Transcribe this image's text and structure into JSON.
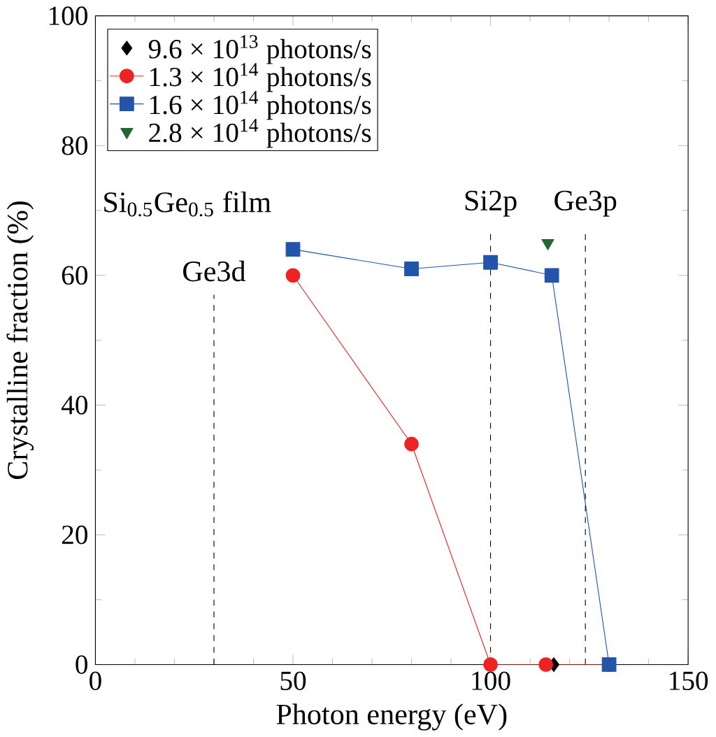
{
  "chart_data": {
    "type": "line",
    "xlabel": "Photon energy (eV)",
    "ylabel": "Crystalline fraction (%)",
    "xlim": [
      0,
      150
    ],
    "xticks": [
      0,
      50,
      100,
      150
    ],
    "ylim": [
      0,
      100
    ],
    "yticks": [
      0,
      20,
      40,
      60,
      80,
      100
    ],
    "legend": "top left",
    "grid": false,
    "line_style": "solid",
    "series": [
      {
        "name": "9.6 × 10$^{13}$  photons/s",
        "type": "scatter",
        "marker": "diamond",
        "color": "#000000",
        "x": [
          116
        ],
        "values": [
          0
        ]
      },
      {
        "name": "1.3 × 10$^{14}$  photons/s",
        "marker": "circle",
        "color": "#ee2222",
        "x": [
          50,
          80,
          100,
          114,
          130
        ],
        "values": [
          60,
          34,
          0,
          0,
          0
        ]
      },
      {
        "name": "1.6 × 10$^{14}$  photons/s",
        "marker": "square",
        "color": "#2255aa",
        "x": [
          50,
          80,
          100,
          115.5,
          130
        ],
        "values": [
          64,
          61,
          62,
          60,
          0
        ]
      },
      {
        "name": "2.8 × 10$^{14}$  photons/s",
        "type": "scatter",
        "marker": "triangle",
        "color": "#226633",
        "x": [
          114.5
        ],
        "values": [
          65
        ]
      }
    ],
    "ref_lines": [
      {
        "axis": "x",
        "value": 30,
        "label": "Ge3d",
        "line_style": "dashed"
      },
      {
        "axis": "x",
        "value": 100,
        "label": "Si2p",
        "line_style": "dashed"
      },
      {
        "axis": "x",
        "value": 124,
        "label": "Ge3p",
        "line_style": "dashed"
      }
    ],
    "annotations": [
      "Si$_{0.5}$Ge$_{0.5}$ film"
    ]
  }
}
